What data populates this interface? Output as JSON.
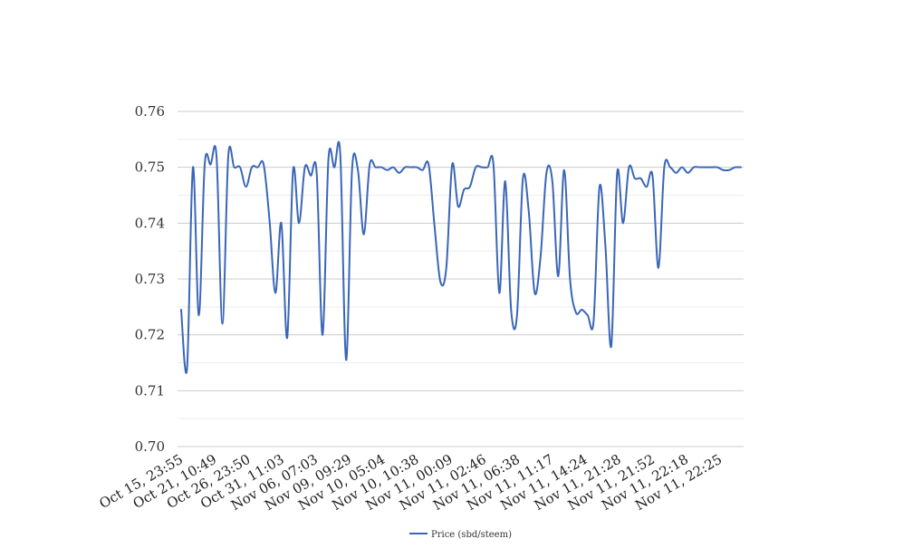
{
  "chart_data": {
    "type": "line",
    "title": "",
    "xlabel": "",
    "ylabel": "",
    "ylim": [
      0.7,
      0.76
    ],
    "y_ticks": [
      "0.70",
      "0.71",
      "0.72",
      "0.73",
      "0.74",
      "0.75",
      "0.76"
    ],
    "x_tick_labels": [
      "Oct 15, 23:55",
      "Oct 21, 10:49",
      "Oct 26, 23:50",
      "Oct 31, 11:03",
      "Nov 06, 07:03",
      "Nov 09, 09:29",
      "Nov 10, 05:04",
      "Nov 10, 10:38",
      "Nov 11, 00:09",
      "Nov 11, 02:46",
      "Nov 11, 06:38",
      "Nov 11, 11:17",
      "Nov 11, 14:24",
      "Nov 11, 21:28",
      "Nov 11, 21:52",
      "Nov 11, 22:18",
      "Nov 11, 22:25"
    ],
    "grid": true,
    "legend_position": "bottom",
    "series": [
      {
        "name": "Price (sbd/steem)",
        "color": "#3a66b8",
        "values": [
          0.7245,
          0.714,
          0.75,
          0.7235,
          0.7505,
          0.7505,
          0.752,
          0.722,
          0.752,
          0.75,
          0.75,
          0.7465,
          0.75,
          0.75,
          0.7505,
          0.7405,
          0.7275,
          0.74,
          0.7195,
          0.7495,
          0.74,
          0.75,
          0.7485,
          0.749,
          0.72,
          0.7515,
          0.75,
          0.7525,
          0.7155,
          0.7495,
          0.7495,
          0.738,
          0.7505,
          0.75,
          0.75,
          0.7495,
          0.75,
          0.749,
          0.75,
          0.75,
          0.75,
          0.7495,
          0.7505,
          0.7395,
          0.7295,
          0.732,
          0.7505,
          0.743,
          0.746,
          0.7465,
          0.75,
          0.75,
          0.75,
          0.7505,
          0.7275,
          0.7475,
          0.7245,
          0.7235,
          0.748,
          0.742,
          0.7275,
          0.734,
          0.749,
          0.7475,
          0.7305,
          0.7495,
          0.73,
          0.724,
          0.7245,
          0.7235,
          0.7225,
          0.7465,
          0.736,
          0.718,
          0.749,
          0.74,
          0.75,
          0.748,
          0.748,
          0.7465,
          0.7485,
          0.732,
          0.75,
          0.75,
          0.749,
          0.75,
          0.749,
          0.75,
          0.75,
          0.75,
          0.75,
          0.75,
          0.7495,
          0.7495,
          0.75,
          0.75
        ]
      }
    ]
  }
}
